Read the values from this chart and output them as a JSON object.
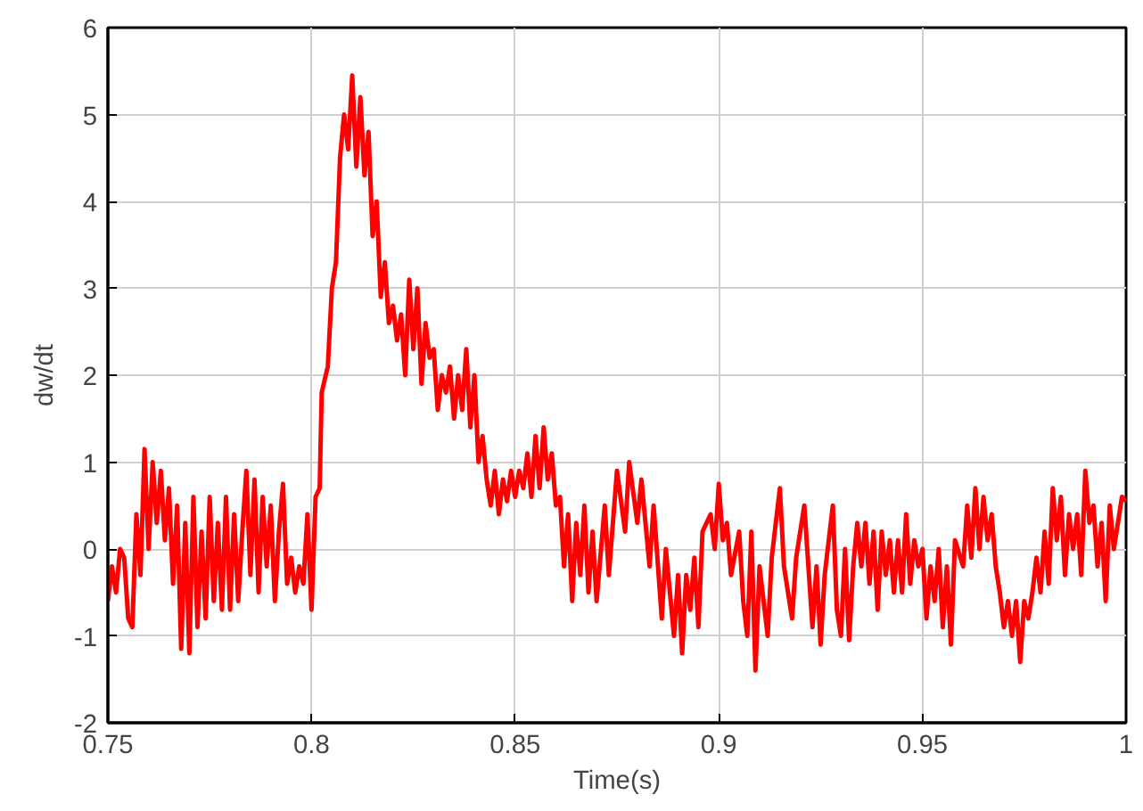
{
  "chart_data": {
    "type": "line",
    "xlabel": "Time(s)",
    "ylabel": "dw/dt",
    "xlim": [
      0.75,
      1.0
    ],
    "ylim": [
      -2,
      6
    ],
    "xticks": [
      0.75,
      0.8,
      0.85,
      0.9,
      0.95,
      1
    ],
    "yticks": [
      -2,
      -1,
      0,
      1,
      2,
      3,
      4,
      5,
      6
    ],
    "grid": true,
    "marker": "none",
    "line_style": "solid",
    "series": [
      {
        "color": "#ff0000",
        "x": [
          0.75,
          0.751,
          0.752,
          0.753,
          0.754,
          0.755,
          0.756,
          0.757,
          0.758,
          0.759,
          0.76,
          0.761,
          0.762,
          0.763,
          0.764,
          0.765,
          0.766,
          0.767,
          0.768,
          0.769,
          0.77,
          0.771,
          0.772,
          0.773,
          0.774,
          0.775,
          0.776,
          0.777,
          0.778,
          0.779,
          0.78,
          0.781,
          0.782,
          0.783,
          0.784,
          0.785,
          0.786,
          0.787,
          0.788,
          0.789,
          0.79,
          0.791,
          0.792,
          0.793,
          0.794,
          0.795,
          0.796,
          0.797,
          0.798,
          0.799,
          0.8,
          0.801,
          0.802,
          0.8025,
          0.804,
          0.805,
          0.806,
          0.807,
          0.808,
          0.809,
          0.81,
          0.811,
          0.812,
          0.813,
          0.814,
          0.815,
          0.816,
          0.817,
          0.818,
          0.819,
          0.82,
          0.821,
          0.822,
          0.823,
          0.824,
          0.825,
          0.826,
          0.827,
          0.828,
          0.829,
          0.83,
          0.831,
          0.832,
          0.833,
          0.834,
          0.835,
          0.836,
          0.837,
          0.838,
          0.839,
          0.84,
          0.841,
          0.842,
          0.843,
          0.844,
          0.845,
          0.846,
          0.847,
          0.848,
          0.849,
          0.85,
          0.851,
          0.852,
          0.853,
          0.854,
          0.855,
          0.856,
          0.857,
          0.858,
          0.859,
          0.86,
          0.861,
          0.862,
          0.863,
          0.864,
          0.865,
          0.866,
          0.867,
          0.868,
          0.869,
          0.87,
          0.872,
          0.873,
          0.875,
          0.877,
          0.878,
          0.88,
          0.881,
          0.883,
          0.884,
          0.886,
          0.887,
          0.889,
          0.89,
          0.891,
          0.892,
          0.893,
          0.894,
          0.895,
          0.896,
          0.898,
          0.899,
          0.9,
          0.901,
          0.902,
          0.903,
          0.905,
          0.906,
          0.907,
          0.908,
          0.909,
          0.91,
          0.911,
          0.912,
          0.913,
          0.915,
          0.916,
          0.917,
          0.918,
          0.919,
          0.921,
          0.922,
          0.923,
          0.924,
          0.925,
          0.926,
          0.928,
          0.929,
          0.93,
          0.931,
          0.932,
          0.933,
          0.934,
          0.935,
          0.936,
          0.937,
          0.938,
          0.939,
          0.94,
          0.941,
          0.942,
          0.943,
          0.944,
          0.945,
          0.946,
          0.947,
          0.948,
          0.949,
          0.95,
          0.951,
          0.952,
          0.953,
          0.954,
          0.955,
          0.956,
          0.957,
          0.958,
          0.96,
          0.961,
          0.962,
          0.963,
          0.964,
          0.965,
          0.966,
          0.967,
          0.968,
          0.969,
          0.97,
          0.971,
          0.972,
          0.973,
          0.974,
          0.975,
          0.976,
          0.977,
          0.978,
          0.979,
          0.98,
          0.981,
          0.982,
          0.983,
          0.984,
          0.985,
          0.986,
          0.987,
          0.988,
          0.989,
          0.99,
          0.991,
          0.992,
          0.993,
          0.994,
          0.995,
          0.996,
          0.997,
          0.998,
          0.999,
          1.0
        ],
        "values": [
          -0.6,
          -0.2,
          -0.5,
          0.0,
          -0.1,
          -0.8,
          -0.9,
          0.4,
          -0.3,
          1.15,
          0.0,
          1.0,
          0.3,
          0.9,
          0.1,
          0.7,
          -0.4,
          0.5,
          -1.15,
          0.3,
          -1.2,
          0.6,
          -0.9,
          0.2,
          -0.8,
          0.6,
          -0.6,
          0.3,
          -0.7,
          0.6,
          -0.7,
          0.4,
          -0.6,
          0.2,
          0.9,
          -0.3,
          0.8,
          -0.5,
          0.6,
          -0.2,
          0.5,
          -0.6,
          0.2,
          0.75,
          -0.4,
          -0.1,
          -0.5,
          -0.2,
          -0.4,
          0.4,
          -0.7,
          0.6,
          0.7,
          1.8,
          2.1,
          3.0,
          3.3,
          4.5,
          5.0,
          4.6,
          5.45,
          4.4,
          5.2,
          4.3,
          4.8,
          3.6,
          4.0,
          2.9,
          3.3,
          2.6,
          2.8,
          2.4,
          2.7,
          2.0,
          3.1,
          2.3,
          3.0,
          1.9,
          2.6,
          2.2,
          2.3,
          1.6,
          2.0,
          1.8,
          2.1,
          1.5,
          2.0,
          1.6,
          2.3,
          1.4,
          2.0,
          1.0,
          1.3,
          0.8,
          0.5,
          0.9,
          0.4,
          0.8,
          0.55,
          0.9,
          0.6,
          0.9,
          0.7,
          1.1,
          0.6,
          1.3,
          0.7,
          1.4,
          0.8,
          1.1,
          0.5,
          0.6,
          -0.2,
          0.4,
          -0.6,
          0.3,
          -0.3,
          0.5,
          -0.5,
          0.2,
          -0.6,
          0.5,
          -0.3,
          0.9,
          0.2,
          1.0,
          0.3,
          0.8,
          -0.2,
          0.5,
          -0.8,
          0.0,
          -1.0,
          -0.3,
          -1.2,
          -0.3,
          -0.7,
          -0.1,
          -0.9,
          0.2,
          0.4,
          0.0,
          0.75,
          0.1,
          0.3,
          -0.3,
          0.2,
          -0.6,
          -1.0,
          0.2,
          -1.4,
          -0.2,
          -0.6,
          -1.0,
          -0.1,
          0.7,
          -0.2,
          -0.5,
          -0.8,
          -0.1,
          0.5,
          -0.2,
          -0.9,
          -0.2,
          -1.1,
          -0.3,
          0.5,
          -0.7,
          -1.0,
          0.0,
          -1.05,
          -0.2,
          0.3,
          -0.2,
          0.3,
          -0.4,
          0.2,
          -0.7,
          0.2,
          -0.3,
          0.1,
          -0.5,
          0.1,
          -0.5,
          0.4,
          -0.4,
          0.1,
          -0.2,
          0.0,
          -0.8,
          -0.2,
          -0.6,
          0.0,
          -0.9,
          -0.2,
          -1.1,
          0.1,
          -0.2,
          0.5,
          -0.1,
          0.7,
          0.0,
          0.6,
          0.1,
          0.4,
          -0.2,
          -0.5,
          -0.9,
          -0.6,
          -1.0,
          -0.6,
          -1.3,
          -0.6,
          -0.8,
          -0.5,
          -0.1,
          -0.5,
          0.2,
          -0.4,
          0.7,
          0.1,
          0.6,
          -0.3,
          0.4,
          0.0,
          0.4,
          -0.3,
          0.9,
          0.3,
          0.5,
          -0.2,
          0.3,
          -0.6,
          0.5,
          0.0,
          0.3,
          0.6,
          0.55
        ]
      }
    ]
  }
}
